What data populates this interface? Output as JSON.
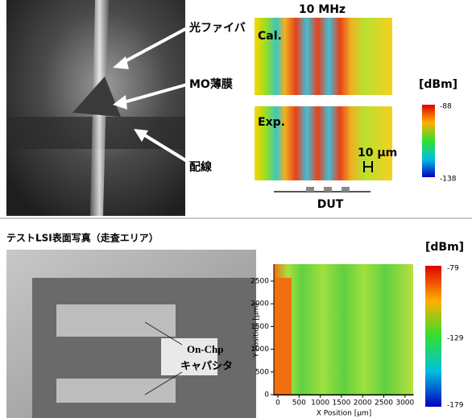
{
  "photo1": {
    "labels": [
      "光ファイバ",
      "MO薄膜",
      "配線"
    ]
  },
  "sim": {
    "title": "10 MHz",
    "panels": [
      "Cal.",
      "Exp."
    ],
    "scale_label": "10 μm",
    "dut_label": "DUT"
  },
  "colorbar1": {
    "unit": "[dBm]",
    "max": -88,
    "min": -138
  },
  "photo2": {
    "title": "テストLSI表面写真（走査エリア）",
    "labels": [
      "On-Chp",
      "キャパシタ"
    ]
  },
  "map": {
    "x_label": "X Position [µm]",
    "y_label": "Y Position [µm]",
    "xticks": [
      0,
      500,
      1000,
      1500,
      2000,
      2500,
      3000
    ],
    "yticks": [
      0,
      500,
      1000,
      1500,
      2000,
      2500
    ]
  },
  "colorbar2": {
    "unit": "[dBm]",
    "max": -79,
    "mid": -129,
    "min": -179
  }
}
